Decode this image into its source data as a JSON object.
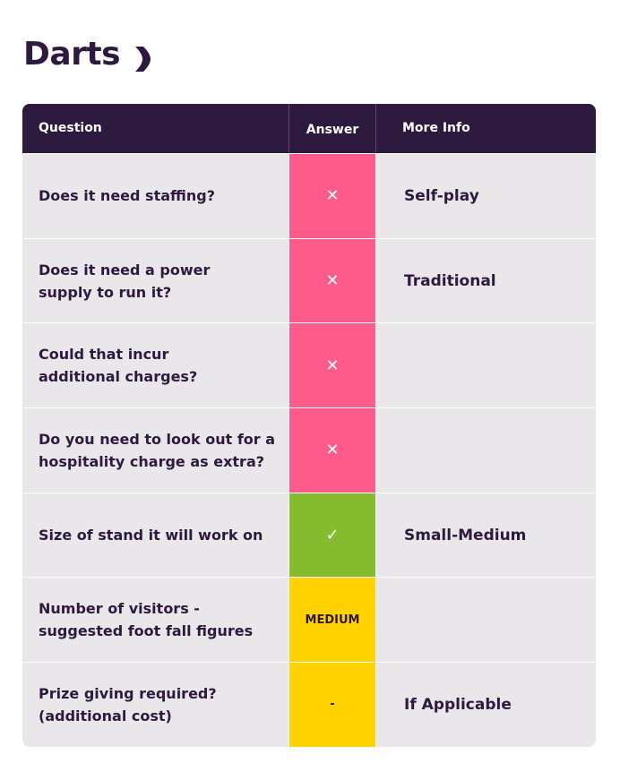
{
  "header": {
    "title": "Darts"
  },
  "table": {
    "columns": [
      "Question",
      "Answer",
      "More Info"
    ],
    "rows": [
      {
        "question": [
          "Does it need staffing?"
        ],
        "answer": "✕",
        "color": "#ff5a8c",
        "info": "Self-play"
      },
      {
        "question": [
          "Does it need a power",
          "supply to run it?"
        ],
        "answer": "✕",
        "color": "#ff5a8c",
        "info": "Traditional"
      },
      {
        "question": [
          "Could that incur",
          "additional charges?"
        ],
        "answer": "✕",
        "color": "#ff5a8c"
      },
      {
        "question": [
          "Do you need to look out for a",
          "hospitality charge as extra?"
        ],
        "answer": "✕",
        "color": "#ff5a8c"
      },
      {
        "question": [
          "Size of stand it will work on"
        ],
        "answer": "✓",
        "color": "#85bb2f",
        "info": "Small-Medium"
      },
      {
        "question": [
          "Number of visitors -",
          "suggested foot fall figures"
        ],
        "answer": "MEDIUM",
        "color": "#ffd200"
      },
      {
        "question": [
          "Prize giving required?",
          "(additional cost)"
        ],
        "answer": "-",
        "color": "#ffd200",
        "info": "If Applicable"
      }
    ]
  }
}
